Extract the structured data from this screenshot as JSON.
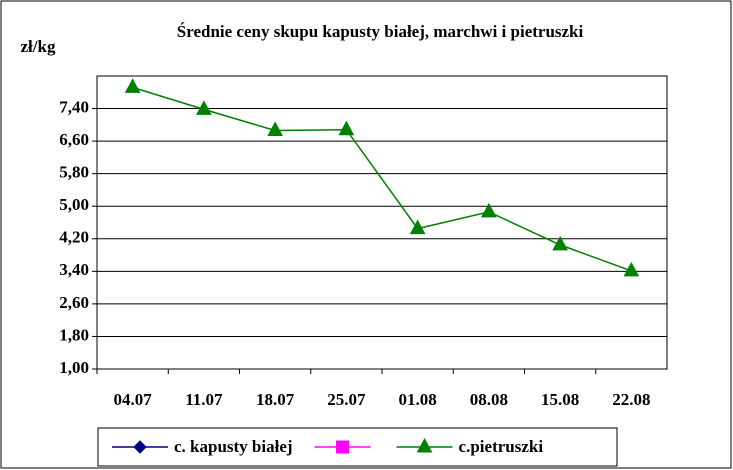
{
  "chart_data": {
    "type": "line",
    "title": "Średnie ceny skupu  kapusty białej, marchwi i pietruszki",
    "y_label": "zł/kg",
    "categories": [
      "04.07",
      "11.07",
      "18.07",
      "25.07",
      "01.08",
      "08.08",
      "15.08",
      "22.08"
    ],
    "series": [
      {
        "name": "c. kapusty białej",
        "color": "#000080",
        "marker": "diamond",
        "values": [
          null,
          null,
          null,
          null,
          null,
          null,
          null,
          null
        ]
      },
      {
        "color": "#ff00ff",
        "marker": "square",
        "values": [
          null,
          null,
          null,
          null,
          null,
          null,
          null,
          null
        ]
      },
      {
        "name": "c.pietruszki",
        "color": "#008000",
        "marker": "triangle",
        "values": [
          7.92,
          7.38,
          6.86,
          6.88,
          4.45,
          4.86,
          4.05,
          3.41
        ]
      }
    ],
    "ylim": [
      1,
      8.2
    ],
    "yticks": [
      {
        "value": 1,
        "label": "1,00"
      },
      {
        "value": 1.8,
        "label": "1,80"
      },
      {
        "value": 2.6,
        "label": "2,60"
      },
      {
        "value": 3.4,
        "label": "3,40"
      },
      {
        "value": 4.2,
        "label": "4,20"
      },
      {
        "value": 5,
        "label": "5,00"
      },
      {
        "value": 5.8,
        "label": "5,80"
      },
      {
        "value": 6.6,
        "label": "6,60"
      },
      {
        "value": 7.4,
        "label": "7,40"
      }
    ],
    "grid": true
  }
}
